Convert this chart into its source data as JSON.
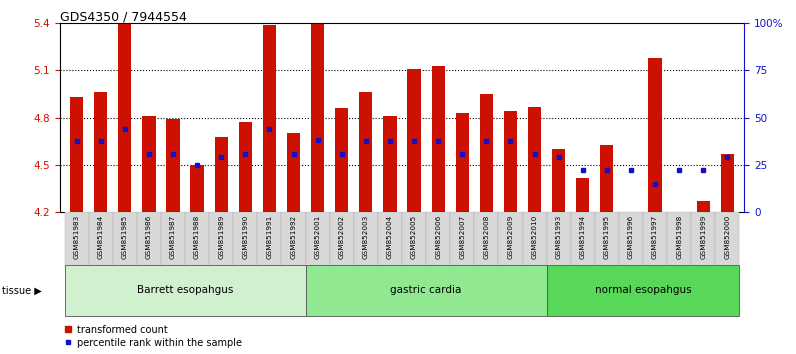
{
  "title": "GDS4350 / 7944554",
  "samples": [
    "GSM851983",
    "GSM851984",
    "GSM851985",
    "GSM851986",
    "GSM851987",
    "GSM851988",
    "GSM851989",
    "GSM851990",
    "GSM851991",
    "GSM851992",
    "GSM852001",
    "GSM852002",
    "GSM852003",
    "GSM852004",
    "GSM852005",
    "GSM852006",
    "GSM852007",
    "GSM852008",
    "GSM852009",
    "GSM852010",
    "GSM851993",
    "GSM851994",
    "GSM851995",
    "GSM851996",
    "GSM851997",
    "GSM851998",
    "GSM851999",
    "GSM852000"
  ],
  "red_values": [
    4.93,
    4.96,
    5.4,
    4.81,
    4.79,
    4.5,
    4.68,
    4.77,
    5.39,
    4.7,
    5.4,
    4.86,
    4.96,
    4.81,
    5.11,
    5.13,
    4.83,
    4.95,
    4.84,
    4.87,
    4.6,
    4.42,
    4.63,
    4.2,
    5.18,
    4.2,
    4.27,
    4.57
  ],
  "blue_values": [
    4.65,
    4.65,
    4.73,
    4.57,
    4.57,
    4.5,
    4.55,
    4.57,
    4.73,
    4.57,
    4.66,
    4.57,
    4.65,
    4.65,
    4.65,
    4.65,
    4.57,
    4.65,
    4.65,
    4.57,
    4.55,
    4.47,
    4.47,
    4.47,
    4.38,
    4.47,
    4.47,
    4.55
  ],
  "groups": [
    {
      "label": "Barrett esopahgus",
      "start": 0,
      "end": 10,
      "color": "#d0f0d0"
    },
    {
      "label": "gastric cardia",
      "start": 10,
      "end": 20,
      "color": "#90e890"
    },
    {
      "label": "normal esopahgus",
      "start": 20,
      "end": 28,
      "color": "#58d858"
    }
  ],
  "ymin": 4.2,
  "ymax": 5.4,
  "yticks": [
    4.2,
    4.5,
    4.8,
    5.1,
    5.4
  ],
  "right_ytick_pcts": [
    0,
    25,
    50,
    75,
    100
  ],
  "right_ytick_labels": [
    "0",
    "25",
    "50",
    "75",
    "100%"
  ],
  "bar_color": "#cc1100",
  "blue_color": "#1111cc",
  "bar_width": 0.55,
  "bg_color": "#ffffff",
  "xlabelbox_color": "#d8d8d8",
  "tick_label_color_left": "#cc1100",
  "tick_label_color_right": "#1111cc",
  "title_fontsize": 9,
  "axis_fontsize": 7.5,
  "group_label_fontsize": 7.5
}
